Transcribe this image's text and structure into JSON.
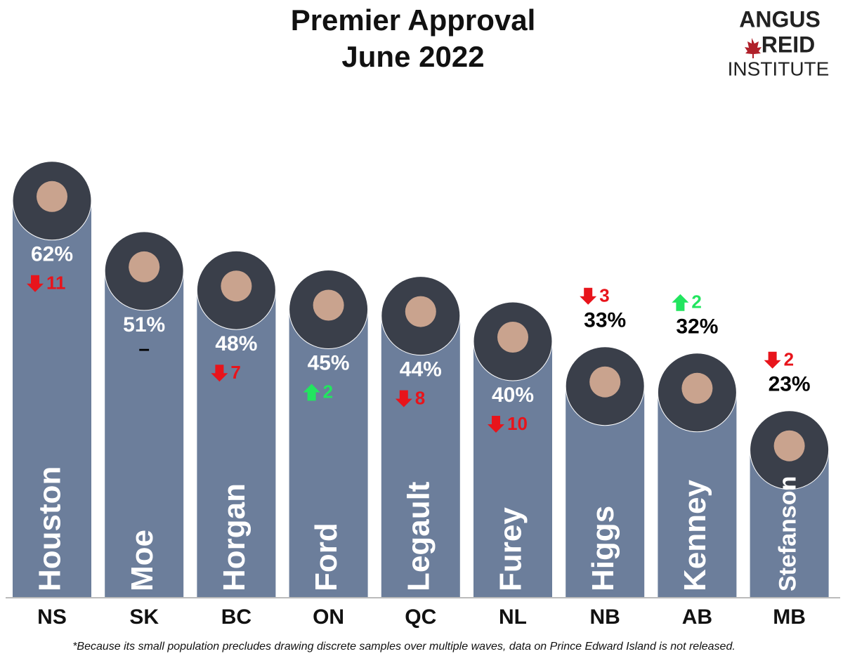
{
  "chart_data": {
    "type": "bar",
    "title": "Premier Approval",
    "subtitle": "June 2022",
    "logo": {
      "line1": "ANGUS",
      "line2": "REID",
      "line3": "INSTITUTE"
    },
    "categories": [
      "NS",
      "SK",
      "BC",
      "ON",
      "QC",
      "NL",
      "NB",
      "AB",
      "MB"
    ],
    "premiers": [
      "Houston",
      "Moe",
      "Horgan",
      "Ford",
      "Legault",
      "Furey",
      "Higgs",
      "Kenney",
      "Stefanson"
    ],
    "values": [
      62,
      51,
      48,
      45,
      44,
      40,
      33,
      32,
      23
    ],
    "value_labels": [
      "62%",
      "51%",
      "48%",
      "45%",
      "44%",
      "40%",
      "33%",
      "32%",
      "23%"
    ],
    "changes": [
      -11,
      0,
      -7,
      2,
      -8,
      -10,
      -3,
      2,
      -2
    ],
    "change_labels": [
      "11",
      "–",
      "7",
      "2",
      "8",
      "10",
      "3",
      "2",
      "2"
    ],
    "color": "#6c7e9b",
    "up_color": "#22e55f",
    "down_color": "#e8141b",
    "footnote": "*Because its small population precludes drawing discrete samples over multiple waves, data on Prince Edward Island is not released."
  }
}
